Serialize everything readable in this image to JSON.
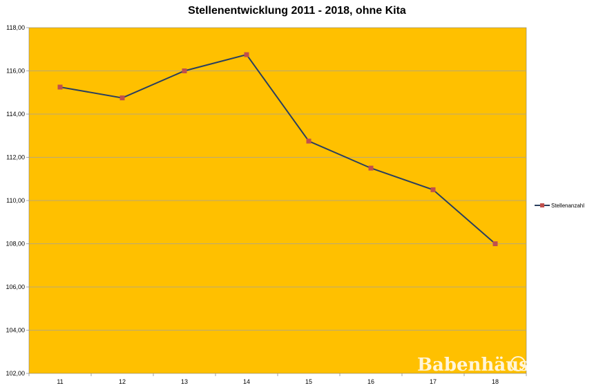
{
  "chart_data": {
    "type": "line",
    "title": "Stellenentwicklung 2011 - 2018, ohne Kita",
    "xlabel": "",
    "ylabel": "",
    "categories": [
      "11",
      "12",
      "13",
      "14",
      "15",
      "16",
      "17",
      "18"
    ],
    "series": [
      {
        "name": "Stellenanzahl",
        "values": [
          115.25,
          114.75,
          116.0,
          116.75,
          112.75,
          111.5,
          110.5,
          108.0
        ],
        "color": "#2a3f5f",
        "marker_color": "#c0504d"
      }
    ],
    "ylim": [
      102,
      118
    ],
    "y_ticks": [
      "102,00",
      "104,00",
      "106,00",
      "108,00",
      "110,00",
      "112,00",
      "114,00",
      "116,00",
      "118,00"
    ],
    "grid": true,
    "legend_position": "right",
    "plot_background": "#ffc000"
  },
  "watermark": {
    "text": "Babenhäuser",
    "color": "#ffffff"
  }
}
